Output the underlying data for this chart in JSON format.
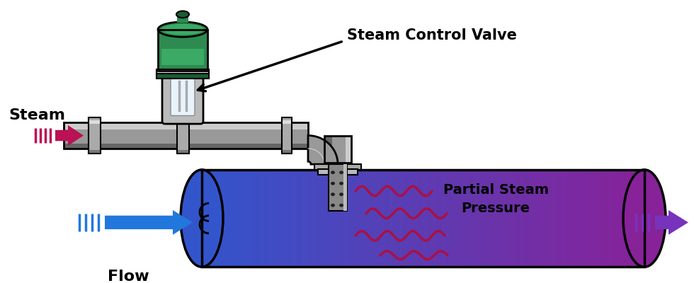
{
  "bg_color": "#ffffff",
  "steam_label": "Steam",
  "flow_label": "Flow",
  "partial_steam_label": "Partial Steam\nPressure",
  "valve_label": "Steam Control Valve",
  "steam_arrow_color": "#bb1155",
  "flow_arrow_color": "#2277dd",
  "outlet_arrow_color": "#7733bb",
  "valve_green": "#2d8a50",
  "valve_green_light": "#3aaa64",
  "valve_green_dark": "#1a5c35",
  "pipe_mid": "#999999",
  "pipe_light": "#cccccc",
  "pipe_dark": "#666666",
  "vessel_left": "#3355cc",
  "vessel_right": "#882299",
  "wave_color": "#aa1144",
  "injector_body": "#888888",
  "injector_dark": "#555555"
}
